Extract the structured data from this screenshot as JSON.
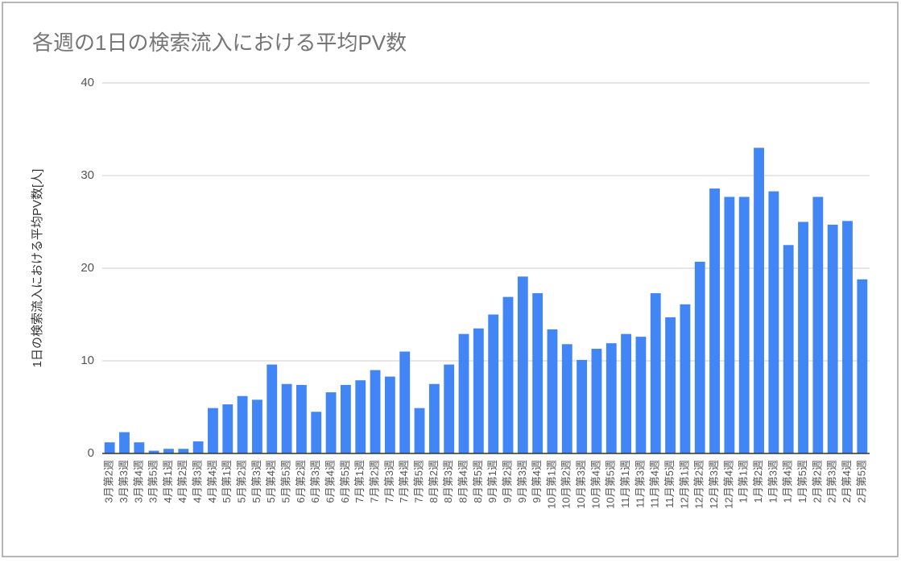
{
  "chart_data": {
    "type": "bar",
    "title": "各週の1日の検索流入における平均PV数",
    "y_label": "1日の検索流入における平均PV数[人]",
    "categories": [
      "3月第2週",
      "3月第3週",
      "3月第4週",
      "3月第5週",
      "4月第1週",
      "4月第2週",
      "4月第3週",
      "4月第4週",
      "5月第1週",
      "5月第2週",
      "5月第3週",
      "5月第4週",
      "5月第5週",
      "6月第2週",
      "6月第3週",
      "6月第4週",
      "6月第5週",
      "7月第1週",
      "7月第2週",
      "7月第3週",
      "7月第4週",
      "7月第5週",
      "8月第2週",
      "8月第3週",
      "8月第4週",
      "8月第5週",
      "9月第1週",
      "9月第2週",
      "9月第3週",
      "9月第4週",
      "10月第1週",
      "10月第2週",
      "10月第3週",
      "10月第4週",
      "10月第5週",
      "11月第1週",
      "11月第3週",
      "11月第4週",
      "11月第5週",
      "12月第1週",
      "12月第2週",
      "12月第3週",
      "12月第4週",
      "1月第1週",
      "1月第2週",
      "1月第3週",
      "1月第4週",
      "1月第5週",
      "2月第2週",
      "2月第3週",
      "2月第4週",
      "2月第5週"
    ],
    "values": [
      1.2,
      2.3,
      1.2,
      0.3,
      0.5,
      0.5,
      1.3,
      4.9,
      5.3,
      6.2,
      5.8,
      9.6,
      7.5,
      7.4,
      4.5,
      6.6,
      7.4,
      7.9,
      9.0,
      8.3,
      11.0,
      4.9,
      7.5,
      9.6,
      12.9,
      13.5,
      15.0,
      16.9,
      19.1,
      17.3,
      13.4,
      11.8,
      10.1,
      11.3,
      11.9,
      12.9,
      12.6,
      17.3,
      14.7,
      16.1,
      20.7,
      28.6,
      27.7,
      27.7,
      33.0,
      28.3,
      22.5,
      25.0,
      27.7,
      24.7,
      25.1,
      18.8
    ],
    "color": "#4285f4",
    "ylim": [
      0,
      40
    ],
    "yticks": [
      0,
      10,
      20,
      30,
      40
    ],
    "grid": true
  }
}
